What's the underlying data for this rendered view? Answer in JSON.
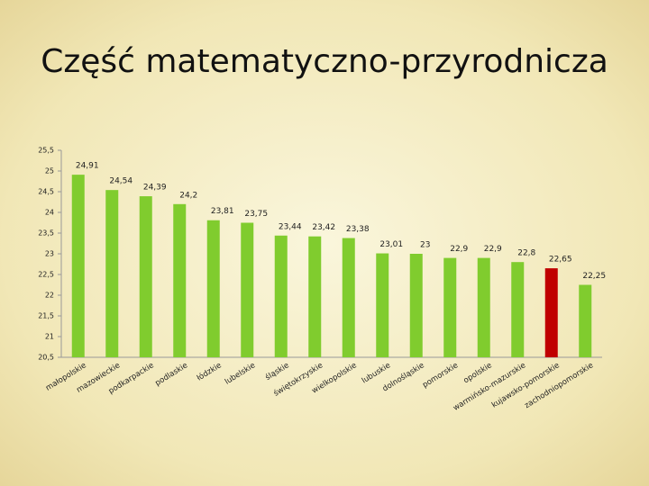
{
  "chart_data": {
    "type": "bar",
    "title": "Część matematyczno-przyrodnicza",
    "categories": [
      "małopolskie",
      "mazowieckie",
      "podkarpackie",
      "podlaskie",
      "łódzkie",
      "lubelskie",
      "śląskie",
      "świętokrzyskie",
      "wielkopolskie",
      "lubuskie",
      "dolnośląskie",
      "pomorskie",
      "opolskie",
      "warmińsko-mazurskie",
      "kujawsko-pomorskie",
      "zachodniopomorskie"
    ],
    "values": [
      24.91,
      24.54,
      24.39,
      24.2,
      23.81,
      23.75,
      23.44,
      23.42,
      23.38,
      23.01,
      23,
      22.9,
      22.9,
      22.8,
      22.65,
      22.25
    ],
    "value_labels": [
      "24,91",
      "24,54",
      "24,39",
      "24,2",
      "23,81",
      "23,75",
      "23,44",
      "23,42",
      "23,38",
      "23,01",
      "23",
      "22,9",
      "22,9",
      "22,8",
      "22,65",
      "22,25"
    ],
    "colors": [
      "#80cc2e",
      "#80cc2e",
      "#80cc2e",
      "#80cc2e",
      "#80cc2e",
      "#80cc2e",
      "#80cc2e",
      "#80cc2e",
      "#80cc2e",
      "#80cc2e",
      "#80cc2e",
      "#80cc2e",
      "#80cc2e",
      "#80cc2e",
      "#c00000",
      "#80cc2e"
    ],
    "ylim": [
      20.5,
      25.5
    ],
    "yticks": [
      {
        "value": 20.5,
        "label": "20,5"
      },
      21,
      {
        "value": 21.5,
        "label": "21,5"
      },
      22,
      {
        "value": 22.5,
        "label": "22,5"
      },
      23,
      {
        "value": 23.5,
        "label": "23,5"
      },
      24,
      {
        "value": 24.5,
        "label": "24,5"
      },
      25,
      {
        "value": 25.5,
        "label": "25,5"
      }
    ],
    "grid": false
  }
}
